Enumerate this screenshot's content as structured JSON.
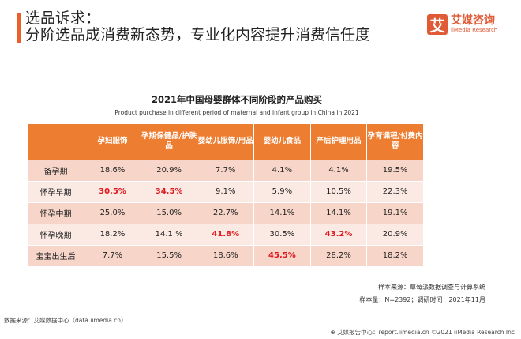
{
  "header": {
    "title_line1": "选品诉求：",
    "title_line2": "分阶选品成消费新态势，专业化内容提升消费信任度"
  },
  "logo": {
    "mark": "艾",
    "name_cn": "艾媒咨询",
    "name_en": "iiMedia Research"
  },
  "chart_data": {
    "type": "table",
    "title": "2021年中国母婴群体不同阶段的产品购买",
    "subtitle": "Product purchase in different period of maternal and infant group in China in 2021",
    "columns": [
      "孕妇服饰",
      "孕期保健品/护肤品",
      "婴幼儿服饰/用品",
      "婴幼儿食品",
      "产后护理用品",
      "孕育课程/付费内容"
    ],
    "rows": [
      {
        "label": "备孕期",
        "values": [
          "18.6%",
          "20.9%",
          "7.7%",
          "4.1%",
          "4.1%",
          "19.5%"
        ],
        "highlight": []
      },
      {
        "label": "怀孕早期",
        "values": [
          "30.5%",
          "34.5%",
          "9.1%",
          "5.9%",
          "10.5%",
          "22.3%"
        ],
        "highlight": [
          0,
          1
        ]
      },
      {
        "label": "怀孕中期",
        "values": [
          "25.0%",
          "15.0%",
          "22.7%",
          "14.1%",
          "14.1%",
          "19.1%"
        ],
        "highlight": []
      },
      {
        "label": "怀孕晚期",
        "values": [
          "18.2%",
          "14.1 %",
          "41.8%",
          "30.5%",
          "43.2%",
          "20.9%"
        ],
        "highlight": [
          2,
          4
        ]
      },
      {
        "label": "宝宝出生后",
        "values": [
          "7.7%",
          "15.5%",
          "18.6%",
          "45.5%",
          "28.2%",
          "18.2%"
        ],
        "highlight": [
          3
        ]
      }
    ],
    "colors": {
      "header": "#ED7D31",
      "highlight": "#E0161E",
      "row_odd": "#F7D6C9",
      "row_even": "#FBEAE3"
    }
  },
  "notes": {
    "sample_source": "样本来源：草莓派数据调查与计算系统",
    "sample_size": "样本量：N=2392；调研时间：2021年11月"
  },
  "footer": {
    "data_source": "数据来源：艾媒数据中心（data.iimedia.cn）",
    "report": "艾媒报告中心：report.iimedia.cn  ©2021  iiMedia Research  Inc"
  }
}
